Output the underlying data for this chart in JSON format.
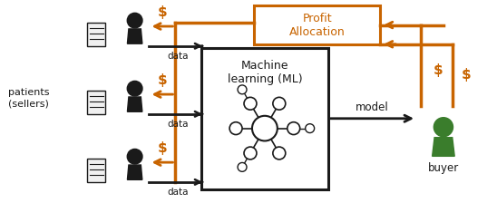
{
  "fig_width": 5.48,
  "fig_height": 2.24,
  "dpi": 100,
  "bg_color": "#ffffff",
  "orange_color": "#C86400",
  "black_color": "#1a1a1a",
  "green_color": "#3a7d2c",
  "patients_label": "patients\n(sellers)",
  "ml_label": "Machine\nlearning (ML)",
  "profit_label": "Profit\nAllocation",
  "model_label": "model",
  "buyer_label": "buyer"
}
